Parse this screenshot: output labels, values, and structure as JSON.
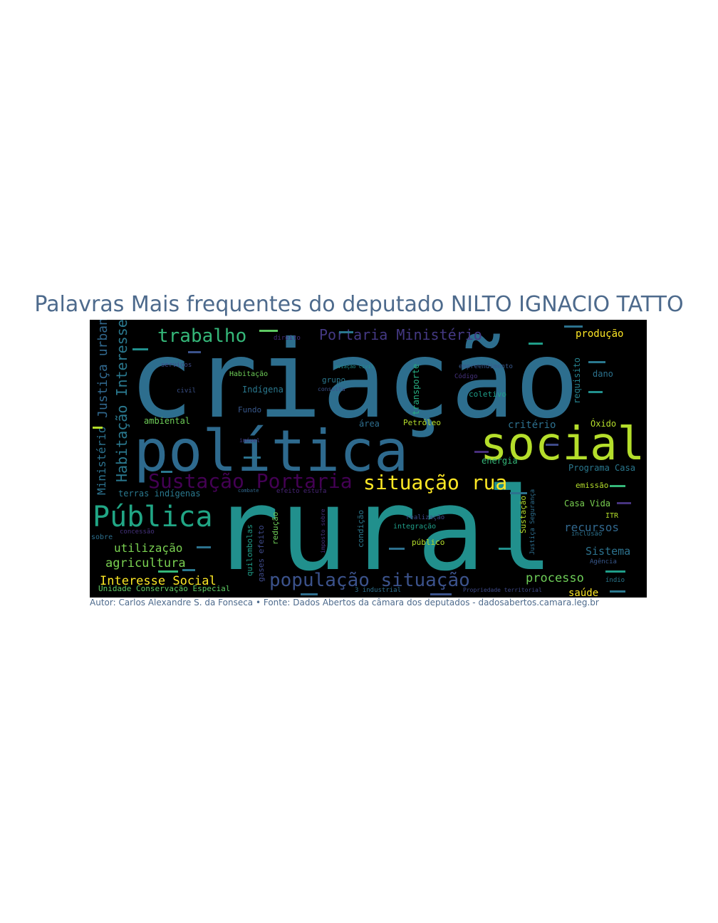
{
  "title": "Palavras Mais frequentes do deputado NILTO IGNACIO TATTO",
  "caption": "Autor: Carlos Alexandre S. da Fonseca • Fonte: Dados Abertos da câmara dos deputados - dadosabertos.camara.leg.br",
  "colors": {
    "background": "#000000",
    "title": "#4d6a8c"
  },
  "words": {
    "criacao": "criação",
    "rural": "rural",
    "politica": "política",
    "social": "social",
    "publica": "Pública",
    "sustacao_portaria": "Sustação Portaria",
    "situacao_rua": "situação rua",
    "populacao_situacao": "população situação",
    "trabalho": "trabalho",
    "portaria_ministerio": "Portaria Ministério",
    "habitacao_interesse": "Habitação Interesse",
    "justica_urbana": "Justiça urbana",
    "ministerio": "Ministério",
    "interesse_social": "Interesse Social",
    "agricultura": "agricultura",
    "utilizacao": "utilização",
    "processo": "processo",
    "recursos": "recursos",
    "sistema": "Sistema",
    "producao": "produção",
    "programa_casa": "Programa Casa",
    "casa_vida": "Casa Vida",
    "terras_indigenas": "terras indígenas",
    "unidade_conservacao": "Unidade Conservação Especial",
    "saude": "saúde",
    "criterio": "critério",
    "energia": "energia",
    "oxido": "Óxido",
    "area": "área",
    "petroleo": "Petróleo",
    "ambiental": "ambiental",
    "indigena": "Indígena",
    "fundo": "Fundo",
    "grupo": "grupo",
    "transporte": "transporte",
    "coletivo": "coletivo",
    "dano": "dano",
    "emissao": "emissão",
    "habitacao": "Habitação",
    "servicos": "serviços",
    "civil": "civil",
    "concessao": "concessão",
    "sobre": "sobre",
    "publico": "público",
    "integracao": "integração",
    "realizacao": "realização",
    "quilombolas": "quilombolas",
    "reducao": "redução",
    "gases_efeito": "gases efeito",
    "efeito_estufa": "efeito estufa",
    "empreendimento": "empreendimento",
    "requisito": "requisito",
    "aviacao_civil": "aviação civil",
    "codigo": "Código",
    "consulta": "consulta",
    "direito": "direito",
    "imovel": "imóvel",
    "agencia": "Agência",
    "itr": "ITR",
    "inclusao": "inclusão",
    "indio": "índio",
    "propriedade_territorial": "Propriedade territorial",
    "industrial": "3 industrial",
    "sustacao": "Sustação",
    "justica_seguranca": "Justiça Segurança",
    "condicao": "condição",
    "combate": "combate",
    "imposto_sobre": "imposto sobre"
  }
}
